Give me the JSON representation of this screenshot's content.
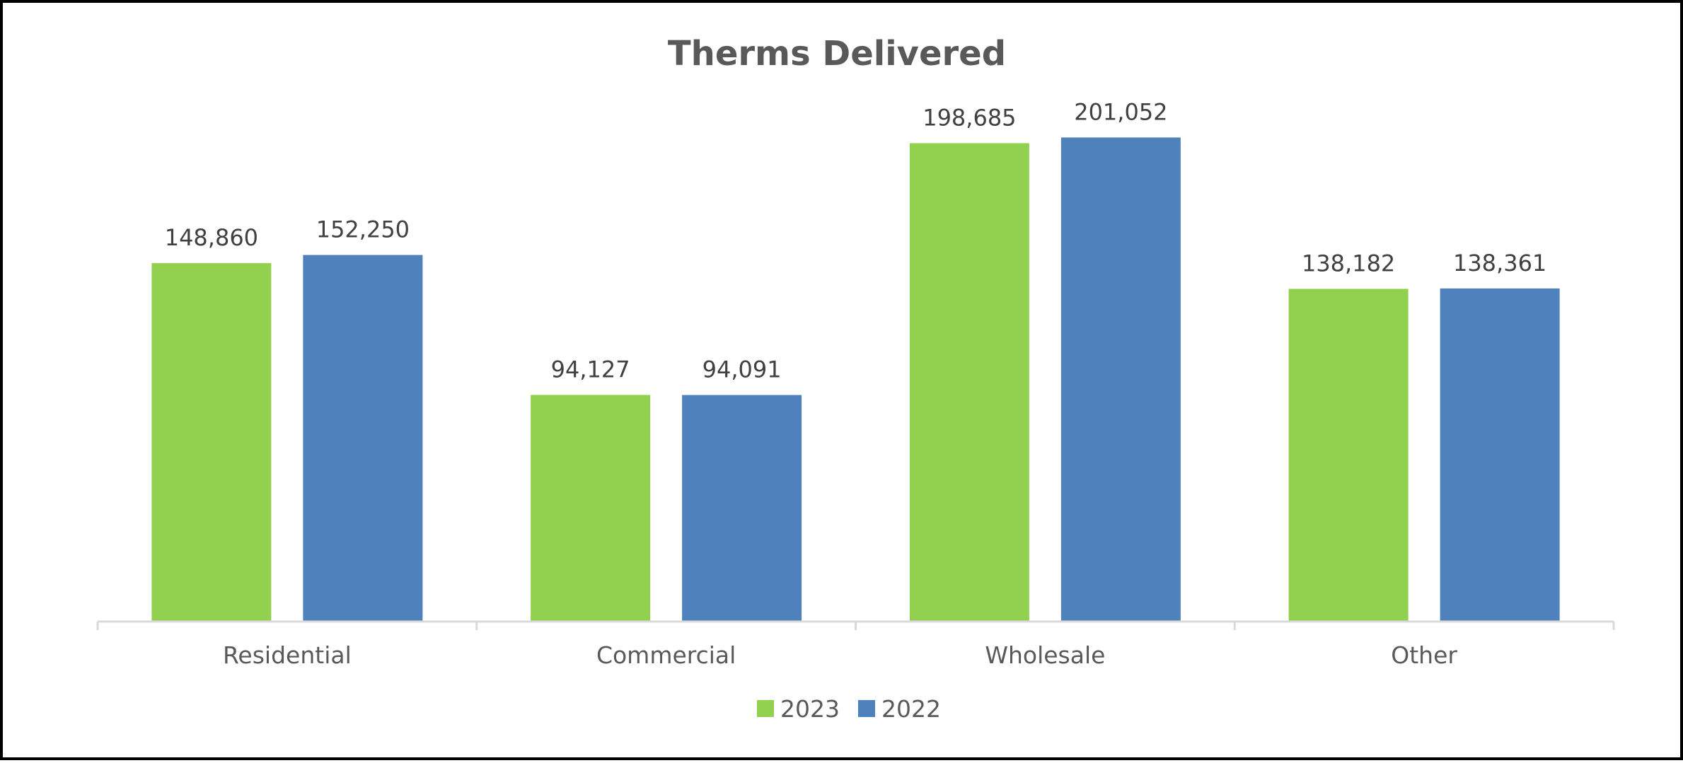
{
  "chart_data": {
    "type": "bar",
    "title": "Therms Delivered",
    "categories": [
      "Residential",
      "Commercial",
      "Wholesale",
      "Other"
    ],
    "series": [
      {
        "name": "2023",
        "color": "#92D050",
        "values": [
          148860,
          94127,
          198685,
          138182
        ],
        "labels": [
          "148,860",
          "94,127",
          "198,685",
          "138,182"
        ]
      },
      {
        "name": "2022",
        "color": "#4F81BD",
        "values": [
          152250,
          94091,
          201052,
          138361
        ],
        "labels": [
          "152,250",
          "94,091",
          "201,052",
          "138,361"
        ]
      }
    ],
    "ylim": [
      0,
      220000
    ],
    "grid": false,
    "legend": "bottom-center",
    "xlabel": "",
    "ylabel": ""
  }
}
